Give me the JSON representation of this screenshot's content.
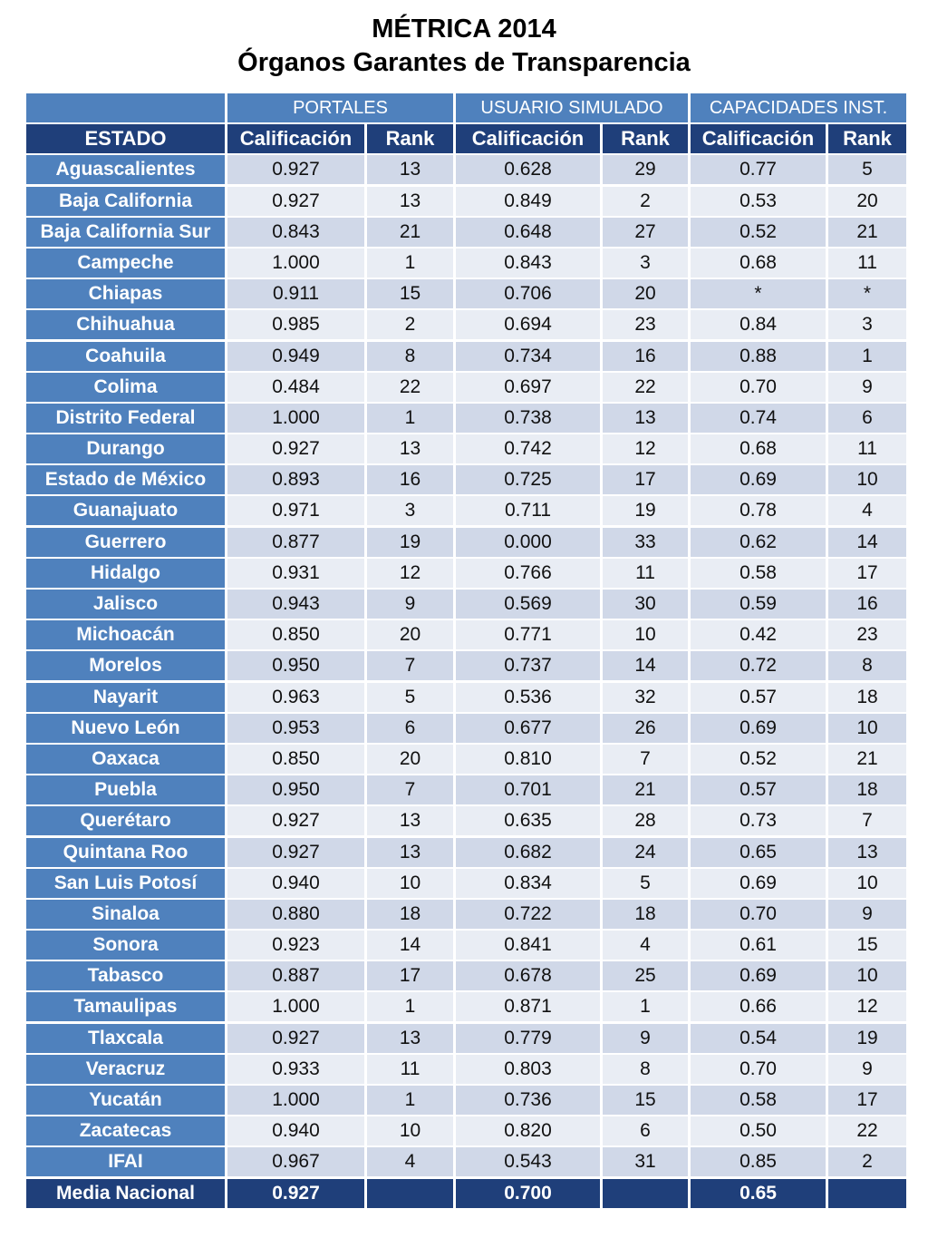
{
  "title": {
    "line1": "MÉTRICA 2014",
    "line2": "Órganos Garantes de Transparencia"
  },
  "group_headers": [
    "",
    "PORTALES",
    "USUARIO SIMULADO",
    "CAPACIDADES INST."
  ],
  "column_headers": [
    "ESTADO",
    "Calificación",
    "Rank",
    "Calificación",
    "Rank",
    "Calificación",
    "Rank"
  ],
  "rows": [
    [
      "Aguascalientes",
      "0.927",
      "13",
      "0.628",
      "29",
      "0.77",
      "5"
    ],
    [
      "Baja California",
      "0.927",
      "13",
      "0.849",
      "2",
      "0.53",
      "20"
    ],
    [
      "Baja California Sur",
      "0.843",
      "21",
      "0.648",
      "27",
      "0.52",
      "21"
    ],
    [
      "Campeche",
      "1.000",
      "1",
      "0.843",
      "3",
      "0.68",
      "11"
    ],
    [
      "Chiapas",
      "0.911",
      "15",
      "0.706",
      "20",
      "*",
      "*"
    ],
    [
      "Chihuahua",
      "0.985",
      "2",
      "0.694",
      "23",
      "0.84",
      "3"
    ],
    [
      "Coahuila",
      "0.949",
      "8",
      "0.734",
      "16",
      "0.88",
      "1"
    ],
    [
      "Colima",
      "0.484",
      "22",
      "0.697",
      "22",
      "0.70",
      "9"
    ],
    [
      "Distrito Federal",
      "1.000",
      "1",
      "0.738",
      "13",
      "0.74",
      "6"
    ],
    [
      "Durango",
      "0.927",
      "13",
      "0.742",
      "12",
      "0.68",
      "11"
    ],
    [
      "Estado de México",
      "0.893",
      "16",
      "0.725",
      "17",
      "0.69",
      "10"
    ],
    [
      "Guanajuato",
      "0.971",
      "3",
      "0.711",
      "19",
      "0.78",
      "4"
    ],
    [
      "Guerrero",
      "0.877",
      "19",
      "0.000",
      "33",
      "0.62",
      "14"
    ],
    [
      "Hidalgo",
      "0.931",
      "12",
      "0.766",
      "11",
      "0.58",
      "17"
    ],
    [
      "Jalisco",
      "0.943",
      "9",
      "0.569",
      "30",
      "0.59",
      "16"
    ],
    [
      "Michoacán",
      "0.850",
      "20",
      "0.771",
      "10",
      "0.42",
      "23"
    ],
    [
      "Morelos",
      "0.950",
      "7",
      "0.737",
      "14",
      "0.72",
      "8"
    ],
    [
      "Nayarit",
      "0.963",
      "5",
      "0.536",
      "32",
      "0.57",
      "18"
    ],
    [
      "Nuevo León",
      "0.953",
      "6",
      "0.677",
      "26",
      "0.69",
      "10"
    ],
    [
      "Oaxaca",
      "0.850",
      "20",
      "0.810",
      "7",
      "0.52",
      "21"
    ],
    [
      "Puebla",
      "0.950",
      "7",
      "0.701",
      "21",
      "0.57",
      "18"
    ],
    [
      "Querétaro",
      "0.927",
      "13",
      "0.635",
      "28",
      "0.73",
      "7"
    ],
    [
      "Quintana Roo",
      "0.927",
      "13",
      "0.682",
      "24",
      "0.65",
      "13"
    ],
    [
      "San Luis Potosí",
      "0.940",
      "10",
      "0.834",
      "5",
      "0.69",
      "10"
    ],
    [
      "Sinaloa",
      "0.880",
      "18",
      "0.722",
      "18",
      "0.70",
      "9"
    ],
    [
      "Sonora",
      "0.923",
      "14",
      "0.841",
      "4",
      "0.61",
      "15"
    ],
    [
      "Tabasco",
      "0.887",
      "17",
      "0.678",
      "25",
      "0.69",
      "10"
    ],
    [
      "Tamaulipas",
      "1.000",
      "1",
      "0.871",
      "1",
      "0.66",
      "12"
    ],
    [
      "Tlaxcala",
      "0.927",
      "13",
      "0.779",
      "9",
      "0.54",
      "19"
    ],
    [
      "Veracruz",
      "0.933",
      "11",
      "0.803",
      "8",
      "0.70",
      "9"
    ],
    [
      "Yucatán",
      "1.000",
      "1",
      "0.736",
      "15",
      "0.58",
      "17"
    ],
    [
      "Zacatecas",
      "0.940",
      "10",
      "0.820",
      "6",
      "0.50",
      "22"
    ],
    [
      "IFAI",
      "0.967",
      "4",
      "0.543",
      "31",
      "0.85",
      "2"
    ]
  ],
  "footer": [
    "Media Nacional",
    "0.927",
    "",
    "0.700",
    "",
    "0.65",
    ""
  ],
  "colors": {
    "group_header_bg": "#4f81bd",
    "column_header_bg": "#1f3f7a",
    "state_cell_bg": "#4f81bd",
    "row_odd_bg": "#d0d8e8",
    "row_even_bg": "#e9edf4",
    "footer_bg": "#1f3f7a"
  }
}
